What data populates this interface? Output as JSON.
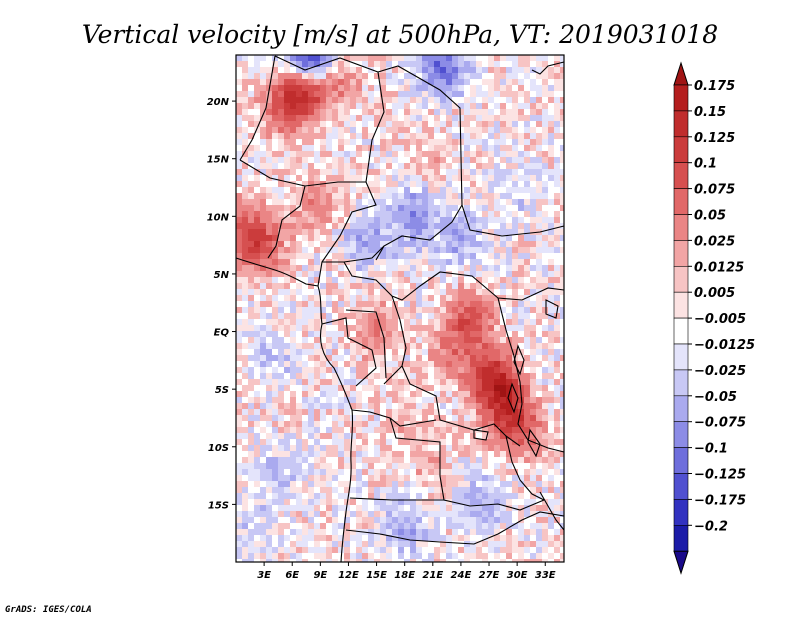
{
  "chart_data": {
    "type": "heatmap",
    "title": "Vertical velocity [m/s] at 500hPa, VT: 2019031018",
    "variable": "Vertical velocity",
    "units": "m/s",
    "level": "500hPa",
    "valid_time": "2019031018",
    "lon_range": [
      0,
      35
    ],
    "lat_range": [
      -20,
      24
    ],
    "x_ticks": [
      {
        "lon": 3,
        "label": "3E"
      },
      {
        "lon": 6,
        "label": "6E"
      },
      {
        "lon": 9,
        "label": "9E"
      },
      {
        "lon": 12,
        "label": "12E"
      },
      {
        "lon": 15,
        "label": "15E"
      },
      {
        "lon": 18,
        "label": "18E"
      },
      {
        "lon": 21,
        "label": "21E"
      },
      {
        "lon": 24,
        "label": "24E"
      },
      {
        "lon": 27,
        "label": "27E"
      },
      {
        "lon": 30,
        "label": "30E"
      },
      {
        "lon": 33,
        "label": "33E"
      }
    ],
    "y_ticks": [
      {
        "lat": 20,
        "label": "20N"
      },
      {
        "lat": 15,
        "label": "15N"
      },
      {
        "lat": 10,
        "label": "10N"
      },
      {
        "lat": 5,
        "label": "5N"
      },
      {
        "lat": 0,
        "label": "EQ"
      },
      {
        "lat": -5,
        "label": "5S"
      },
      {
        "lat": -10,
        "label": "10S"
      },
      {
        "lat": -15,
        "label": "15S"
      }
    ],
    "colorbar": {
      "levels": [
        {
          "label": "0.175",
          "value": 0.175,
          "color": "#b41e1e"
        },
        {
          "label": "0.15",
          "value": 0.15,
          "color": "#c02d2d"
        },
        {
          "label": "0.125",
          "value": 0.125,
          "color": "#cb3c3c"
        },
        {
          "label": "0.1",
          "value": 0.1,
          "color": "#d65050"
        },
        {
          "label": "0.075",
          "value": 0.075,
          "color": "#e16868"
        },
        {
          "label": "0.05",
          "value": 0.05,
          "color": "#ea8585"
        },
        {
          "label": "0.025",
          "value": 0.025,
          "color": "#f2a5a5"
        },
        {
          "label": "0.0125",
          "value": 0.0125,
          "color": "#f7c4c4"
        },
        {
          "label": "0.005",
          "value": 0.005,
          "color": "#fce3e3"
        },
        {
          "label": "−0.005",
          "value": -0.005,
          "color": "#ffffff"
        },
        {
          "label": "−0.0125",
          "value": -0.0125,
          "color": "#e4e4fb"
        },
        {
          "label": "−0.025",
          "value": -0.025,
          "color": "#c8c8f5"
        },
        {
          "label": "−0.05",
          "value": -0.05,
          "color": "#aaaaef"
        },
        {
          "label": "−0.075",
          "value": -0.075,
          "color": "#8c8ce6"
        },
        {
          "label": "−0.1",
          "value": -0.1,
          "color": "#6e6edc"
        },
        {
          "label": "−0.125",
          "value": -0.125,
          "color": "#5050d0"
        },
        {
          "label": "−0.175",
          "value": -0.175,
          "color": "#3232c0"
        },
        {
          "label": "−0.2",
          "value": -0.2,
          "color": "#1c1ca8"
        }
      ],
      "over_color": "#a01414",
      "under_color": "#1a0a8a"
    },
    "field_features": [
      {
        "lon": 7.5,
        "lat": 21.5,
        "value": 0.15
      },
      {
        "lon": 5.5,
        "lat": 19.5,
        "value": 0.1
      },
      {
        "lon": 11,
        "lat": 22,
        "value": 0.05
      },
      {
        "lon": 2.5,
        "lat": 7.5,
        "value": 0.1
      },
      {
        "lon": 1,
        "lat": 9,
        "value": 0.05
      },
      {
        "lon": 8.5,
        "lat": 11,
        "value": 0.05
      },
      {
        "lon": 20,
        "lat": 15,
        "value": 0.025
      },
      {
        "lon": 25,
        "lat": 1,
        "value": 0.1
      },
      {
        "lon": 23,
        "lat": -2,
        "value": 0.05
      },
      {
        "lon": 27.5,
        "lat": -4,
        "value": 0.15
      },
      {
        "lon": 29,
        "lat": -7,
        "value": 0.125
      },
      {
        "lon": 31,
        "lat": -9,
        "value": 0.05
      },
      {
        "lon": 18,
        "lat": -8,
        "value": 0.025
      },
      {
        "lon": 15,
        "lat": 0,
        "value": 0.05
      },
      {
        "lon": 21,
        "lat": -12,
        "value": 0.025
      },
      {
        "lon": 14,
        "lat": 8,
        "value": -0.05
      },
      {
        "lon": 19,
        "lat": 10,
        "value": -0.075
      },
      {
        "lon": 24,
        "lat": 8,
        "value": -0.05
      },
      {
        "lon": 30,
        "lat": 12,
        "value": -0.025
      },
      {
        "lon": 4,
        "lat": -2,
        "value": -0.025
      },
      {
        "lon": 5,
        "lat": -12,
        "value": -0.025
      },
      {
        "lon": 18,
        "lat": -17,
        "value": -0.05
      },
      {
        "lon": 26,
        "lat": -15,
        "value": -0.05
      },
      {
        "lon": 8,
        "lat": 23.5,
        "value": -0.2
      },
      {
        "lon": 22,
        "lat": 23,
        "value": -0.1
      },
      {
        "lon": 2,
        "lat": -17,
        "value": -0.025
      }
    ]
  },
  "footer": {
    "credit": "GrADS: IGES/COLA"
  }
}
